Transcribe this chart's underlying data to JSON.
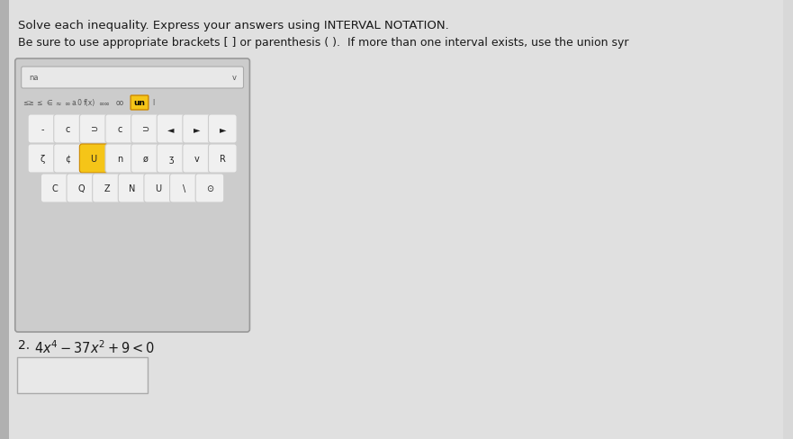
{
  "bg_color": "#d8d8d8",
  "page_bg": "#e8e8e8",
  "title_line1": "Solve each inequality. Express your answers using INTERVAL NOTATION.",
  "title_line2": "Be sure to use appropriate brackets [ ] or parenthesis ( ).  If more than one interval exists, use the union syr",
  "problem_number": "2.",
  "keyboard_bg": "#d0d0d0",
  "keyboard_border": "#aaaaaa",
  "key_bg": "#f0f0f0",
  "key_highlight": "#f5c518",
  "key_border": "#bbbbbb",
  "toolbar_bg": "#e0e0e0",
  "toolbar_input_bg": "#f8f8f8",
  "un_text_color": "#000000",
  "un_bg": "#f5c518",
  "un_border": "#cc8800"
}
